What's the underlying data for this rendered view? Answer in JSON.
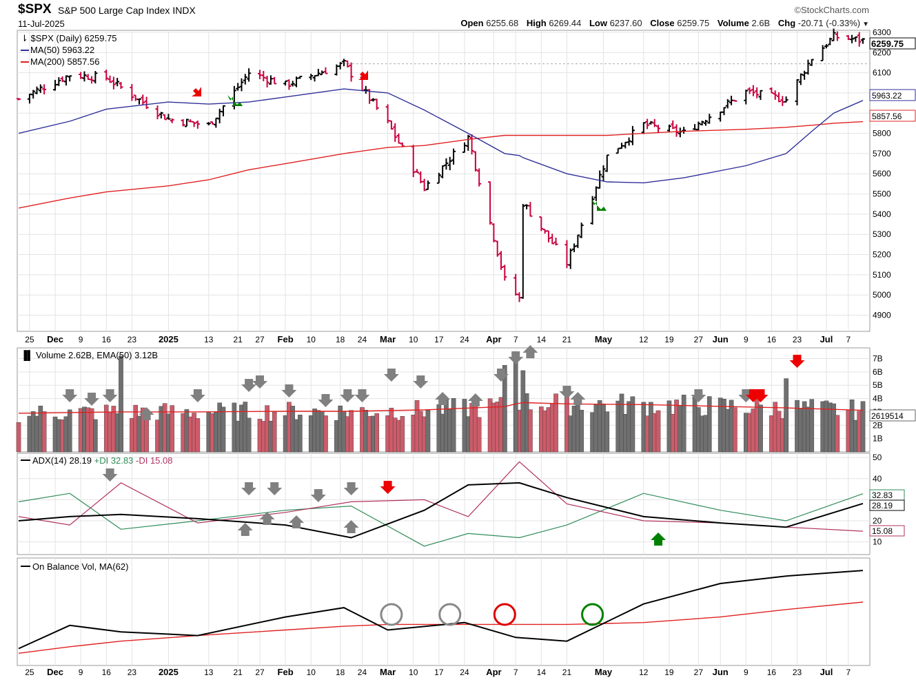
{
  "header": {
    "symbol": "$SPX",
    "name": "S&P 500 Large Cap Index",
    "exchange": "INDX",
    "date": "11-Jul-2025",
    "brand": "©StockCharts.com",
    "open_label": "Open",
    "open": "6255.68",
    "high_label": "High",
    "high": "6269.44",
    "low_label": "Low",
    "low": "6237.60",
    "close_label": "Close",
    "close": "6259.75",
    "volume_label": "Volume",
    "volume": "2.6B",
    "chg_label": "Chg",
    "chg": "-20.71 (-0.33%)"
  },
  "legends": {
    "price": "$SPX (Daily) 6259.75",
    "ma50": "MA(50) 5963.22",
    "ma200": "MA(200) 5857.56",
    "volume": "Volume 2.62B, EMA(50) 3.12B",
    "adx": "ADX(14) 28.19",
    "pdi": "+DI 32.83",
    "mdi": "-DI 15.08",
    "obv": "On Balance Vol, MA(62)"
  },
  "badges": {
    "price": "6259.75",
    "ma50": "5963.22",
    "ma200": "5857.56",
    "volume": "2619514",
    "pdi": "32.83",
    "adx": "28.19",
    "mdi": "15.08"
  },
  "colors": {
    "up": "#000000",
    "down": "#c8003c",
    "ma50": "#2f2f9a",
    "ma200": "#e02020",
    "vol_up": "#707070",
    "vol_down": "#cc5c6a",
    "adx": "#000000",
    "pdi": "#2e8b57",
    "mdi": "#b03060",
    "obv": "#000000",
    "obv_ma": "#e02020",
    "arrow_gray": "#808080",
    "arrow_red": "#ee0000",
    "arrow_green": "#008000"
  },
  "x_axis_labels": [
    "25",
    "Dec",
    "9",
    "16",
    "23",
    "2025",
    "13",
    "21",
    "27",
    "Feb",
    "10",
    "18",
    "24",
    "Mar",
    "10",
    "17",
    "24",
    "Apr",
    "7",
    "14",
    "21",
    "May",
    "12",
    "19",
    "27",
    "Jun",
    "9",
    "16",
    "23",
    "Jul",
    "7"
  ],
  "chart_data": [
    {
      "type": "line",
      "panel": "price",
      "title": "$SPX (Daily) 6259.75",
      "x": [
        "2024-11-22",
        "2024-12-06",
        "2024-12-16",
        "2025-01-02",
        "2025-01-13",
        "2025-01-24",
        "2025-02-03",
        "2025-02-19",
        "2025-03-03",
        "2025-03-13",
        "2025-03-25",
        "2025-04-04",
        "2025-04-08",
        "2025-04-09",
        "2025-04-21",
        "2025-05-02",
        "2025-05-12",
        "2025-05-23",
        "2025-06-09",
        "2025-06-20",
        "2025-06-27",
        "2025-07-03",
        "2025-07-11"
      ],
      "y_ticks": [
        4900,
        5000,
        5100,
        5200,
        5300,
        5400,
        5500,
        5600,
        5700,
        5800,
        5900,
        6000,
        6100,
        6200,
        6300
      ],
      "ylim": [
        4820,
        6310
      ],
      "series": [
        {
          "name": "$SPX",
          "values": [
            5970,
            6090,
            6075,
            5870,
            5840,
            6100,
            6040,
            6144,
            5850,
            5530,
            5780,
            5074,
            4982,
            5456,
            5158,
            5686,
            5844,
            5802,
            6006,
            5967,
            6173,
            6279,
            6260
          ]
        },
        {
          "name": "MA(50)",
          "values": [
            5800,
            5860,
            5920,
            5955,
            5945,
            5955,
            5980,
            6020,
            6000,
            5915,
            5800,
            5700,
            5690,
            5680,
            5600,
            5560,
            5555,
            5580,
            5640,
            5700,
            5810,
            5900,
            5963
          ]
        },
        {
          "name": "MA(200)",
          "values": [
            5430,
            5480,
            5510,
            5540,
            5570,
            5620,
            5650,
            5700,
            5730,
            5740,
            5770,
            5790,
            5790,
            5790,
            5790,
            5790,
            5800,
            5810,
            5820,
            5830,
            5840,
            5850,
            5858
          ]
        }
      ]
    },
    {
      "type": "bar",
      "panel": "volume",
      "title": "Volume 2.62B, EMA(50) 3.12B",
      "y_ticks_labels": [
        "1B",
        "2B",
        "3B",
        "4B",
        "5B",
        "6B",
        "7B"
      ],
      "ylim": [
        0,
        7.8
      ],
      "x": [
        "2024-11-22",
        "2024-12-06",
        "2024-12-20",
        "2025-01-10",
        "2025-02-03",
        "2025-02-21",
        "2025-03-13",
        "2025-04-04",
        "2025-04-07",
        "2025-04-09",
        "2025-04-21",
        "2025-05-12",
        "2025-06-20",
        "2025-07-11"
      ],
      "series": [
        {
          "name": "Volume",
          "values": [
            2.9,
            2.8,
            7.2,
            3.1,
            3.3,
            3.3,
            3.8,
            6.5,
            7.0,
            6.1,
            3.3,
            3.4,
            5.5,
            2.62
          ]
        },
        {
          "name": "EMA(50)",
          "values": [
            2.9,
            2.95,
            3.0,
            3.0,
            3.05,
            3.05,
            3.15,
            3.4,
            3.6,
            3.7,
            3.6,
            3.55,
            3.3,
            3.12
          ]
        }
      ]
    },
    {
      "type": "line",
      "panel": "adx",
      "title": "ADX(14) 28.19",
      "y_ticks": [
        10,
        20,
        30,
        40,
        50
      ],
      "ylim": [
        4,
        52
      ],
      "x": [
        "2024-11-22",
        "2024-12-06",
        "2024-12-20",
        "2025-01-10",
        "2025-02-03",
        "2025-02-21",
        "2025-03-13",
        "2025-03-25",
        "2025-04-08",
        "2025-04-21",
        "2025-05-12",
        "2025-06-02",
        "2025-06-20",
        "2025-07-11"
      ],
      "series": [
        {
          "name": "ADX(14)",
          "values": [
            20,
            22,
            23,
            21,
            18,
            12,
            25,
            37,
            38,
            31,
            22,
            19,
            17,
            28.19
          ]
        },
        {
          "name": "+DI",
          "values": [
            29,
            33,
            16,
            20,
            25,
            27,
            8,
            14,
            12,
            18,
            33,
            25,
            20,
            32.83
          ]
        },
        {
          "name": "-DI",
          "values": [
            22,
            18,
            38,
            19,
            24,
            29,
            30,
            22,
            48,
            28,
            20,
            19,
            17,
            15.08
          ]
        }
      ]
    },
    {
      "type": "line",
      "panel": "obv",
      "title": "On Balance Vol, MA(62)",
      "x": [
        "2024-11-22",
        "2024-12-06",
        "2024-12-20",
        "2025-01-10",
        "2025-02-03",
        "2025-02-19",
        "2025-03-03",
        "2025-03-24",
        "2025-04-07",
        "2025-04-21",
        "2025-05-12",
        "2025-06-02",
        "2025-06-20",
        "2025-07-11"
      ],
      "series": [
        {
          "name": "On Balance Vol",
          "values": [
            0,
            25,
            18,
            14,
            34,
            44,
            20,
            28,
            12,
            8,
            48,
            70,
            78,
            84
          ]
        },
        {
          "name": "MA(62)",
          "values": [
            -5,
            2,
            8,
            14,
            20,
            24,
            26,
            26,
            26,
            26,
            28,
            34,
            42,
            50
          ]
        }
      ]
    }
  ]
}
